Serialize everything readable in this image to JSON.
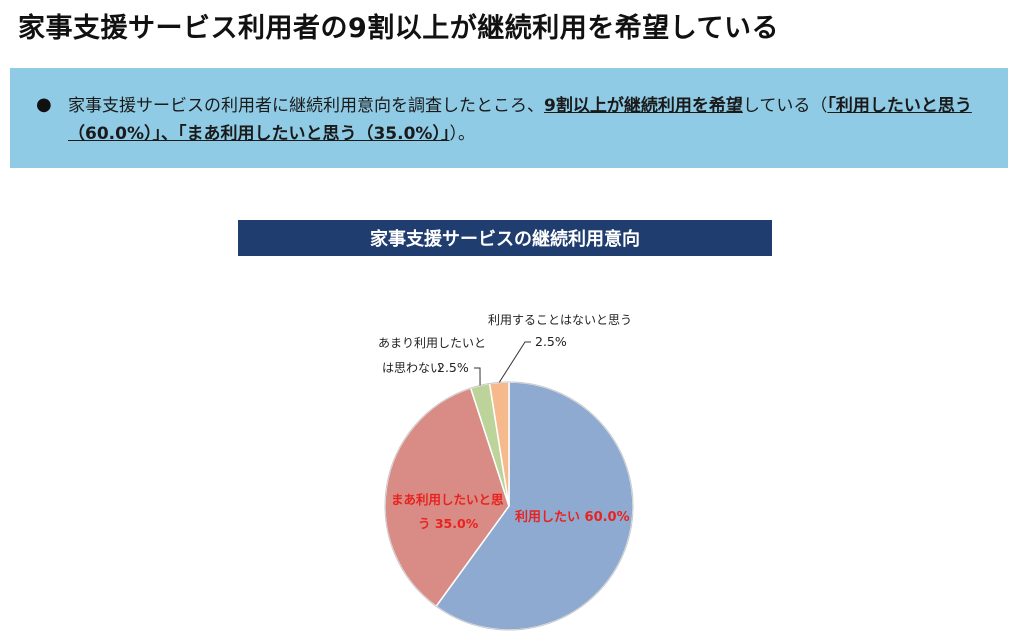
{
  "page": {
    "title": "家事支援サービス利用者の9割以上が継続利用を希望している"
  },
  "summary": {
    "bullet": "●",
    "parts": [
      {
        "text": "家事支援サービスの利用者に継続利用意向を調査したところ、",
        "emphasis": false
      },
      {
        "text": "9割以上が継続利用を希望",
        "emphasis": true
      },
      {
        "text": "している（",
        "emphasis": false
      },
      {
        "text": "「利用したいと思う（60.0%）」、「まあ利用したいと思う（35.0%）」",
        "emphasis": true
      },
      {
        "text": "）。",
        "emphasis": false
      }
    ]
  },
  "chart_data": {
    "type": "pie",
    "title": "家事支援サービスの継続利用意向",
    "slices": [
      {
        "label": "利用したい",
        "value": 60.0,
        "value_text": "60.0%",
        "color": "#8eaad1"
      },
      {
        "label": "まあ利用したいと思う",
        "value": 35.0,
        "value_text": "35.0%",
        "color": "#d98b86"
      },
      {
        "label": "あまり利用したいとは思わない",
        "value": 2.5,
        "value_text": "2.5%",
        "color": "#bcd49a"
      },
      {
        "label": "利用することはないと思う",
        "value": 2.5,
        "value_text": "2.5%",
        "color": "#f5b98c"
      }
    ],
    "label_color_inside": "#e8231f"
  }
}
